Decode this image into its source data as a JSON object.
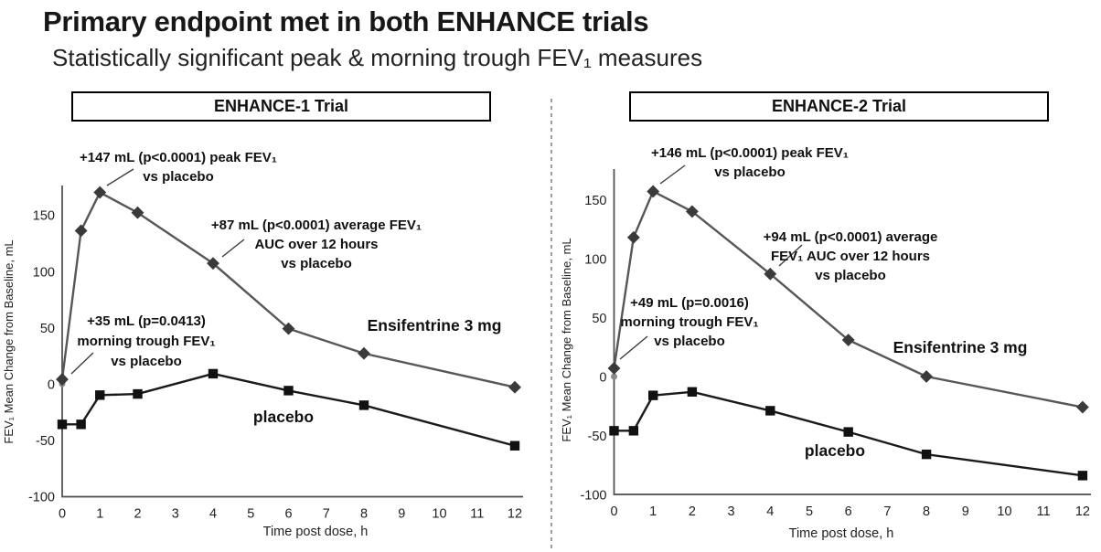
{
  "title": "Primary endpoint met in both ENHANCE trials",
  "subtitle": "Statistically significant peak & morning trough FEV₁ measures",
  "colors": {
    "ensifentrine_line": "#575757",
    "ensifentrine_marker": "#3a3a3a",
    "placebo_line": "#1a1a1a",
    "placebo_marker": "#111111",
    "divider": "#666666",
    "axis": "#4a4a4a"
  },
  "chart_data": [
    {
      "type": "line",
      "title": "ENHANCE-1 Trial",
      "x": [
        0,
        0.5,
        1,
        2,
        4,
        6,
        8,
        12
      ],
      "series": [
        {
          "name": "Ensifentrine 3 mg",
          "marker": "diamond",
          "color": "#575757",
          "marker_color": "#3a3a3a",
          "values": [
            4,
            136,
            170,
            152,
            107,
            49,
            27,
            -3
          ]
        },
        {
          "name": "placebo",
          "marker": "square",
          "color": "#1a1a1a",
          "marker_color": "#111111",
          "values": [
            -36,
            -36,
            -10,
            -9,
            9,
            -6,
            -19,
            -55
          ]
        }
      ],
      "xlabel": "Time post dose, h",
      "ylabel": "FEV₁ Mean Change from Baseline, mL",
      "xlim": [
        0,
        12
      ],
      "ylim": [
        -100,
        180
      ],
      "yticks": [
        150,
        100,
        50,
        0,
        -50,
        -100
      ],
      "xticks": [
        0,
        1,
        2,
        3,
        4,
        5,
        6,
        7,
        8,
        9,
        10,
        11,
        12
      ],
      "grid": false,
      "legend": "inline-series-labels",
      "annotations": [
        {
          "lines": [
            "+147 mL (p<0.0001) peak FEV₁",
            "vs placebo"
          ],
          "points_to": {
            "x": 1,
            "series": "Ensifentrine 3 mg"
          }
        },
        {
          "lines": [
            "+87 mL (p<0.0001) average FEV₁",
            "AUC over 12 hours",
            "vs placebo"
          ],
          "points_to": {
            "x": 4,
            "series": "Ensifentrine 3 mg"
          }
        },
        {
          "lines": [
            "+35 mL (p=0.0413)",
            "morning trough FEV₁",
            "vs placebo"
          ],
          "points_to": {
            "x": 0,
            "series": "Ensifentrine 3 mg"
          }
        }
      ]
    },
    {
      "type": "line",
      "title": "ENHANCE-2 Trial",
      "x": [
        0,
        0.5,
        1,
        2,
        4,
        6,
        8,
        12
      ],
      "series": [
        {
          "name": "Ensifentrine 3 mg",
          "marker": "diamond",
          "color": "#575757",
          "marker_color": "#3a3a3a",
          "values": [
            7,
            118,
            157,
            140,
            87,
            31,
            0,
            -26
          ]
        },
        {
          "name": "placebo",
          "marker": "square",
          "color": "#1a1a1a",
          "marker_color": "#111111",
          "values": [
            -46,
            -46,
            -16,
            -13,
            -29,
            -47,
            -66,
            -84
          ]
        }
      ],
      "xlabel": "Time post dose, h",
      "ylabel": "FEV₁ Mean Change from Baseline, mL",
      "xlim": [
        0,
        12
      ],
      "ylim": [
        -100,
        180
      ],
      "yticks": [
        150,
        100,
        50,
        0,
        -50,
        -100
      ],
      "xticks": [
        0,
        1,
        2,
        3,
        4,
        5,
        6,
        7,
        8,
        9,
        10,
        11,
        12
      ],
      "grid": false,
      "legend": "inline-series-labels",
      "annotations": [
        {
          "lines": [
            "+146 mL (p<0.0001) peak FEV₁",
            "vs placebo"
          ],
          "points_to": {
            "x": 1,
            "series": "Ensifentrine 3 mg"
          }
        },
        {
          "lines": [
            "+94 mL (p<0.0001) average",
            "FEV₁ AUC over 12 hours",
            "vs placebo"
          ],
          "points_to": {
            "x": 4,
            "series": "Ensifentrine 3 mg"
          }
        },
        {
          "lines": [
            "+49 mL (p=0.0016)",
            "morning trough FEV₁",
            "vs placebo"
          ],
          "points_to": {
            "x": 0,
            "series": "Ensifentrine 3 mg"
          }
        }
      ]
    }
  ]
}
